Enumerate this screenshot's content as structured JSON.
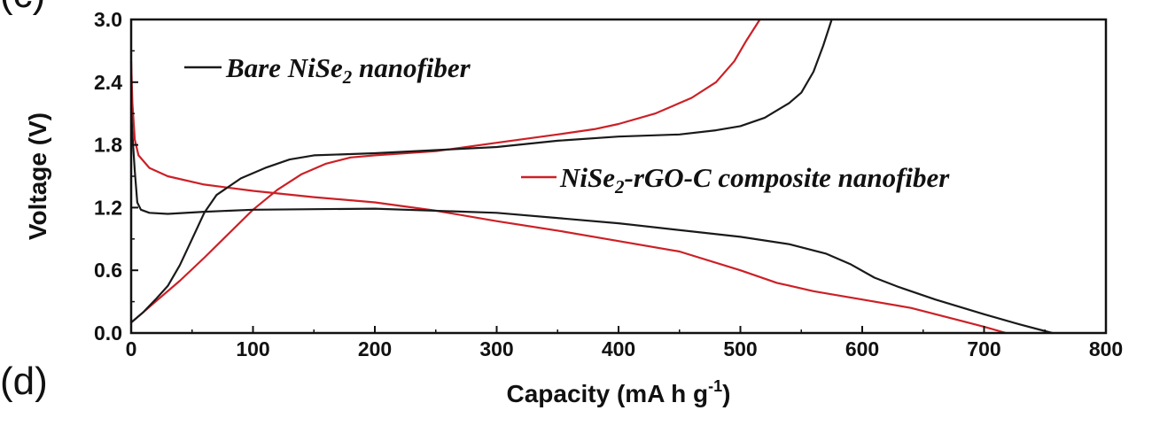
{
  "panel_labels": {
    "top": "(c)",
    "bottom": "(d)"
  },
  "colors": {
    "bare": "#1a1a1a",
    "composite": "#cc2026",
    "axis": "#111111"
  },
  "chart_data": {
    "type": "line",
    "xlabel": "Capacity (mA h g-1)",
    "xlabel_main": "Capacity (mA h g",
    "xlabel_sup": "-1",
    "xlabel_tail": ")",
    "ylabel": "Voltage (V)",
    "xlim": [
      0,
      800
    ],
    "ylim": [
      0,
      3.0
    ],
    "x_ticks": [
      "0",
      "100",
      "200",
      "300",
      "400",
      "500",
      "600",
      "700",
      "800"
    ],
    "y_ticks": [
      "0.0",
      "0.6",
      "1.2",
      "1.8",
      "2.4",
      "3.0"
    ],
    "legend": [
      {
        "series": "bare",
        "pre": "Bare NiSe",
        "sub": "2",
        "post": " nanofiber"
      },
      {
        "series": "composite",
        "pre": "NiSe",
        "sub": "2",
        "post": "-rGO-C composite nanofiber"
      }
    ],
    "series": [
      {
        "name": "Bare NiSe2 nanofiber",
        "key": "bare",
        "curves": [
          {
            "label": "discharge",
            "points": [
              [
                0,
                2.15
              ],
              [
                1,
                1.9
              ],
              [
                3,
                1.55
              ],
              [
                5,
                1.25
              ],
              [
                8,
                1.18
              ],
              [
                15,
                1.15
              ],
              [
                30,
                1.14
              ],
              [
                60,
                1.16
              ],
              [
                100,
                1.18
              ],
              [
                200,
                1.19
              ],
              [
                300,
                1.15
              ],
              [
                400,
                1.05
              ],
              [
                500,
                0.92
              ],
              [
                540,
                0.85
              ],
              [
                570,
                0.76
              ],
              [
                590,
                0.66
              ],
              [
                610,
                0.53
              ],
              [
                630,
                0.44
              ],
              [
                660,
                0.32
              ],
              [
                700,
                0.18
              ],
              [
                730,
                0.08
              ],
              [
                756,
                0.0
              ]
            ]
          },
          {
            "label": "charge",
            "points": [
              [
                0,
                0.1
              ],
              [
                10,
                0.2
              ],
              [
                20,
                0.32
              ],
              [
                30,
                0.45
              ],
              [
                40,
                0.65
              ],
              [
                50,
                0.9
              ],
              [
                60,
                1.15
              ],
              [
                70,
                1.32
              ],
              [
                90,
                1.48
              ],
              [
                110,
                1.58
              ],
              [
                130,
                1.66
              ],
              [
                150,
                1.7
              ],
              [
                200,
                1.72
              ],
              [
                300,
                1.78
              ],
              [
                350,
                1.84
              ],
              [
                400,
                1.88
              ],
              [
                450,
                1.9
              ],
              [
                480,
                1.94
              ],
              [
                500,
                1.98
              ],
              [
                520,
                2.06
              ],
              [
                540,
                2.2
              ],
              [
                550,
                2.3
              ],
              [
                560,
                2.5
              ],
              [
                568,
                2.75
              ],
              [
                575,
                3.0
              ]
            ]
          }
        ]
      },
      {
        "name": "NiSe2-rGO-C composite nanofiber",
        "key": "composite",
        "curves": [
          {
            "label": "discharge",
            "points": [
              [
                0,
                2.6
              ],
              [
                1,
                2.2
              ],
              [
                3,
                1.85
              ],
              [
                6,
                1.7
              ],
              [
                15,
                1.58
              ],
              [
                30,
                1.5
              ],
              [
                60,
                1.42
              ],
              [
                100,
                1.36
              ],
              [
                150,
                1.3
              ],
              [
                200,
                1.25
              ],
              [
                250,
                1.17
              ],
              [
                300,
                1.07
              ],
              [
                350,
                0.98
              ],
              [
                400,
                0.88
              ],
              [
                450,
                0.78
              ],
              [
                500,
                0.6
              ],
              [
                530,
                0.48
              ],
              [
                560,
                0.4
              ],
              [
                600,
                0.32
              ],
              [
                640,
                0.24
              ],
              [
                680,
                0.12
              ],
              [
                700,
                0.06
              ],
              [
                718,
                0.0
              ]
            ]
          },
          {
            "label": "charge",
            "points": [
              [
                0,
                0.1
              ],
              [
                10,
                0.2
              ],
              [
                20,
                0.3
              ],
              [
                40,
                0.5
              ],
              [
                60,
                0.72
              ],
              [
                80,
                0.95
              ],
              [
                100,
                1.18
              ],
              [
                120,
                1.37
              ],
              [
                140,
                1.52
              ],
              [
                160,
                1.62
              ],
              [
                180,
                1.68
              ],
              [
                200,
                1.7
              ],
              [
                250,
                1.74
              ],
              [
                300,
                1.82
              ],
              [
                350,
                1.9
              ],
              [
                380,
                1.95
              ],
              [
                400,
                2.0
              ],
              [
                430,
                2.1
              ],
              [
                460,
                2.25
              ],
              [
                480,
                2.4
              ],
              [
                495,
                2.6
              ],
              [
                505,
                2.8
              ],
              [
                516,
                3.0
              ]
            ]
          }
        ]
      }
    ]
  }
}
